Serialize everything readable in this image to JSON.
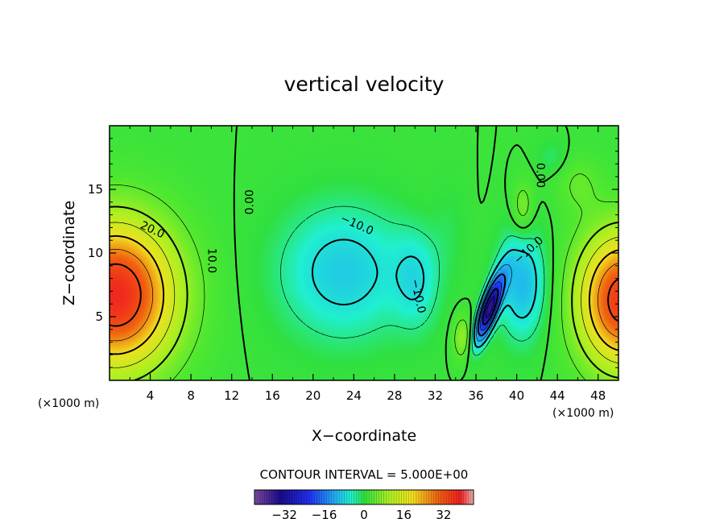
{
  "chart_data": {
    "type": "heatmap",
    "title": "vertical velocity",
    "xlabel": "X−coordinate",
    "ylabel": "Z−coordinate",
    "x_unit_left": "(×1000 m)",
    "x_unit_right": "(×1000 m)",
    "xlim": [
      0,
      50
    ],
    "ylim": [
      0,
      20
    ],
    "x_ticks": [
      4,
      8,
      12,
      16,
      20,
      24,
      28,
      32,
      36,
      40,
      44,
      48
    ],
    "y_ticks": [
      5,
      10,
      15
    ],
    "contour_interval_text": "CONTOUR INTERVAL = 5.000E+00",
    "contour_labels": [
      {
        "text": "20.0",
        "x": 4.2,
        "y": 11.8,
        "angle": 25
      },
      {
        "text": "10.0",
        "x": 10.0,
        "y": 9.4,
        "angle": 90
      },
      {
        "text": "0.00",
        "x": 13.8,
        "y": 14.0,
        "angle": -90
      },
      {
        "text": "−10.0",
        "x": 24.3,
        "y": 12.2,
        "angle": 24
      },
      {
        "text": "−10.0",
        "x": 30.3,
        "y": 6.6,
        "angle": 78
      },
      {
        "text": "−10.0",
        "x": 41.2,
        "y": 10.2,
        "angle": -42
      },
      {
        "text": "0.00",
        "x": 42.3,
        "y": 16.1,
        "angle": 90
      }
    ],
    "colorbar": {
      "range": [
        -44,
        44
      ],
      "ticks": [
        "−32",
        "−16",
        "0",
        "16",
        "32"
      ],
      "tick_values": [
        -32,
        -16,
        0,
        16,
        32
      ]
    },
    "field_features": [
      {
        "name": "updraft-left",
        "x": 1.0,
        "z": 6.5,
        "peak": 34
      },
      {
        "name": "updraft-right",
        "x": 49.8,
        "z": 6.3,
        "peak": 32
      },
      {
        "name": "downdraft-center",
        "x": 23.0,
        "z": 7.5,
        "peak": -12
      },
      {
        "name": "downdraft-core",
        "x": 37.3,
        "z": 5.5,
        "peak": -36
      },
      {
        "name": "downdraft-flank",
        "x": 40.5,
        "z": 7.5,
        "peak": -16
      },
      {
        "name": "updraft-small",
        "x": 34.7,
        "z": 3.5,
        "peak": 9
      },
      {
        "name": "updraft-upper",
        "x": 40.6,
        "z": 13.5,
        "peak": 8
      }
    ]
  }
}
